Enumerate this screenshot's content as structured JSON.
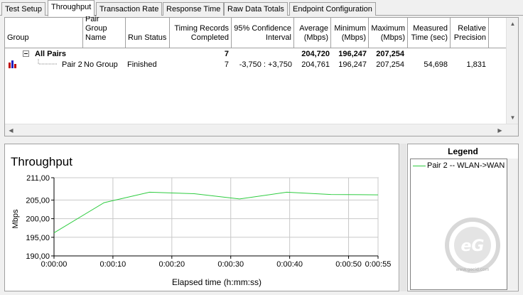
{
  "tabs": [
    {
      "label": "Test Setup"
    },
    {
      "label": "Throughput"
    },
    {
      "label": "Transaction Rate"
    },
    {
      "label": "Response Time"
    },
    {
      "label": "Raw Data Totals"
    },
    {
      "label": "Endpoint Configuration"
    }
  ],
  "table": {
    "headers": {
      "group": "Group",
      "pair_group_name": "Pair Group Name",
      "run_status": "Run Status",
      "timing_records": "Timing Records Completed",
      "confidence": "95% Confidence Interval",
      "average": "Average (Mbps)",
      "minimum": "Minimum (Mbps)",
      "maximum": "Maximum (Mbps)",
      "measured_time": "Measured Time (sec)",
      "relative_precision": "Relative Precision"
    },
    "summary_row": {
      "group": "All Pairs",
      "timing_records": "7",
      "average": "204,720",
      "minimum": "196,247",
      "maximum": "207,254"
    },
    "pair_row": {
      "group": "Pair 2",
      "pair_group_name": "No Group",
      "run_status": "Finished",
      "timing_records": "7",
      "confidence": "-3,750 : +3,750",
      "average": "204,761",
      "minimum": "196,247",
      "maximum": "207,254",
      "measured_time": "54,698",
      "relative_precision": "1,831"
    }
  },
  "legend": {
    "title": "Legend",
    "items": [
      {
        "label": "Pair 2 -- WLAN->WAN",
        "color": "#2ecc40"
      }
    ]
  },
  "watermark_text": "www.gecid.com",
  "chart_data": {
    "type": "line",
    "title": "Throughput",
    "xlabel": "Elapsed time (h:mm:ss)",
    "ylabel": "Mbps",
    "ylim": [
      190,
      211
    ],
    "xlim": [
      0,
      55
    ],
    "yticks": [
      "190,00",
      "195,00",
      "200,00",
      "205,00",
      "211,00"
    ],
    "ytick_values": [
      190,
      195,
      200,
      205,
      211
    ],
    "xticks": [
      "0:00:00",
      "0:00:10",
      "0:00:20",
      "0:00:30",
      "0:00:40",
      "0:00:50",
      "0:00:55"
    ],
    "xtick_values": [
      0,
      10,
      20,
      30,
      40,
      50,
      55
    ],
    "grid": true,
    "series": [
      {
        "name": "Pair 2 -- WLAN->WAN",
        "color": "#2ecc40",
        "x": [
          0,
          8.5,
          16.2,
          23.8,
          31.5,
          39.5,
          47.0,
          55.0
        ],
        "y": [
          196.2,
          204.3,
          207.1,
          206.7,
          205.3,
          207.1,
          206.5,
          206.4
        ]
      }
    ]
  }
}
